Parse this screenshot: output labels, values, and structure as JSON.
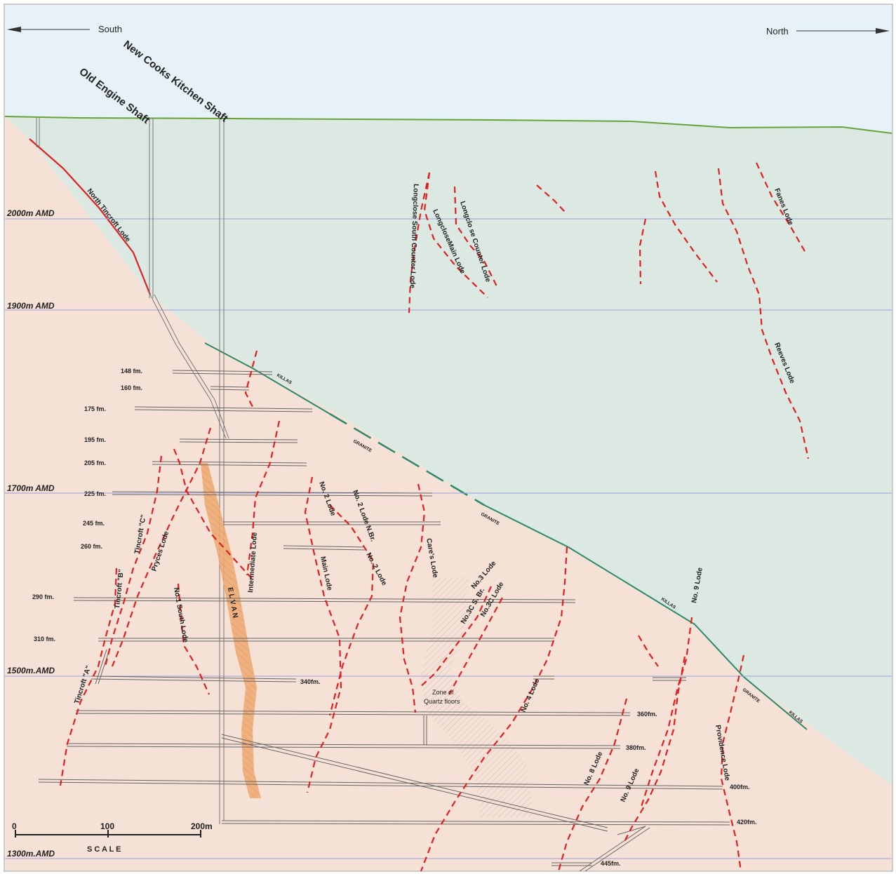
{
  "direction": {
    "south": "South",
    "north": "North"
  },
  "shafts": {
    "new_cooks_kitchen": "New Cooks Kitchen Shaft",
    "old_engine": "Old Engine Shaft"
  },
  "elevations": [
    "2000m AMD",
    "1900m AMD",
    "1700m AMD",
    "1500m.AMD",
    "1300m.AMD"
  ],
  "levels": [
    "148 fm.",
    "160 fm.",
    "175 fm.",
    "195 fm.",
    "205 fm.",
    "225 fm.",
    "245 fm.",
    "260 fm.",
    "290 fm.",
    "310 fm.",
    "340fm.",
    "360fm.",
    "380fm.",
    "400fm.",
    "420fm.",
    "445fm."
  ],
  "lodes": {
    "north_tincroft": "North  Tincroft  Lode",
    "longclose_south_counter": "Longclose South Counter Lode",
    "longclose_main": "LongcloseMain Lode",
    "longclose_counter": "Longclo se Counter Lode",
    "fanes": "Fanes Lode",
    "reeves": "Reeves Lode",
    "no2": "No. 2 Lode",
    "no2_nbr": "No. 2 Lode N.Br.",
    "no2_b": "No. 2 Lode",
    "main": "Main Lode",
    "cares": "Care's Lode",
    "intermediate": "Intermediate Lode",
    "tincroft_c": "Tincroft \"C\"",
    "pryces": "Pryces Lode",
    "tincroft_b": "Tincroft \"B\"",
    "no1_south": "No.1 South Lode",
    "tincroft_a": "Tincroft \"A\"",
    "no3": "No.3 Lode",
    "no3c_sbr": "No.3C S. Br.",
    "no3c": "No.3C Lode",
    "no4": "No. 4 Lode",
    "no8": "No. 8 Lode",
    "no9": "No. 9 Lode",
    "no9_b": "No. 9 Lode",
    "providence": "Providence Lode"
  },
  "elvan": "E L V A N",
  "zone": {
    "line1": "Zone of",
    "line2": "Quartz floors"
  },
  "contacts": {
    "killas": "KILLAS",
    "granite": "GRANITE"
  },
  "scale": {
    "t0": "0",
    "t100": "100",
    "t200": "200m",
    "label": "S C A L E"
  },
  "colors": {
    "sky": "#e6f1f8",
    "killas": "#dce8e2",
    "granite": "#f6e1d6",
    "surface": "#6aa23a",
    "contact": "#2a8a6a",
    "lode": "#e02020",
    "elvan": "#f0a870"
  }
}
